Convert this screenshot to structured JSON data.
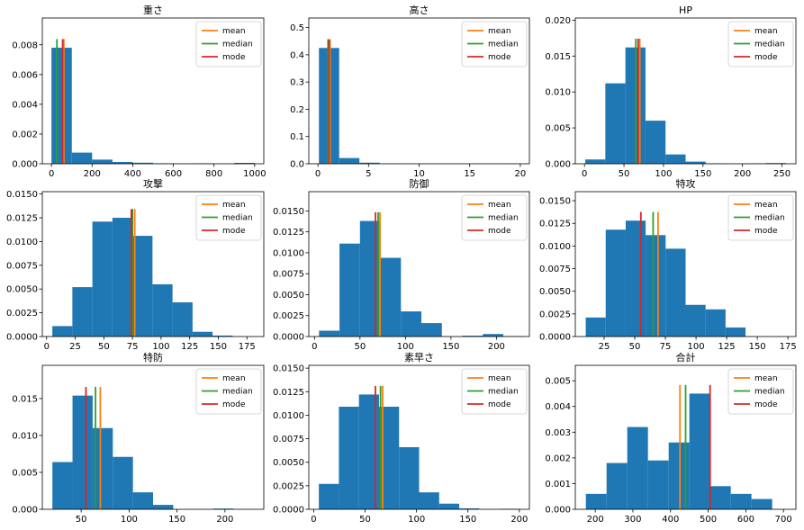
{
  "figure": {
    "background": "#ffffff"
  },
  "style": {
    "bar_color": "#1f77b4",
    "mean_color": "#ff7f0e",
    "median_color": "#2ca02c",
    "mode_color": "#d62728"
  },
  "chart_data": [
    {
      "type": "histogram",
      "title": "重さ",
      "xlim": [
        -45,
        1045
      ],
      "ylim": [
        0,
        0.0098
      ],
      "xticks": [
        0,
        200,
        400,
        600,
        800,
        1000
      ],
      "xtick_labels": [
        "0",
        "200",
        "400",
        "600",
        "800",
        "1000"
      ],
      "yticks": [
        0,
        0.002,
        0.004,
        0.006,
        0.008
      ],
      "ytick_labels": [
        "0.000",
        "0.002",
        "0.004",
        "0.006",
        "0.008"
      ],
      "bin_edges": [
        0.1,
        100.1,
        200.1,
        300.1,
        400.1,
        500.1,
        600.1,
        700.1,
        800.1,
        900.1,
        1000
      ],
      "values": [
        0.0078,
        0.00075,
        0.00028,
        0.00012,
        7e-05,
        3e-05,
        1e-05,
        3e-05,
        0.0,
        6e-05
      ],
      "stats": {
        "mean": 61,
        "median": 27,
        "mode": 55
      },
      "legend": [
        "mean",
        "median",
        "mode"
      ]
    },
    {
      "type": "histogram",
      "title": "高さ",
      "xlim": [
        -0.9,
        20.9
      ],
      "ylim": [
        0,
        0.535
      ],
      "xticks": [
        0,
        5,
        10,
        15,
        20
      ],
      "xtick_labels": [
        "0",
        "5",
        "10",
        "15",
        "20"
      ],
      "yticks": [
        0,
        0.1,
        0.2,
        0.3,
        0.4,
        0.5
      ],
      "ytick_labels": [
        "0.0",
        "0.1",
        "0.2",
        "0.3",
        "0.4",
        "0.5"
      ],
      "bin_edges": [
        0.1,
        2.1,
        4.1,
        6.1,
        8.1,
        10.1,
        12.1,
        14.1,
        16.1,
        18.1,
        20
      ],
      "values": [
        0.425,
        0.021,
        0.004,
        0.0005,
        0.0,
        0.0,
        0.0,
        0.0,
        0.0,
        0.0003
      ],
      "stats": {
        "mean": 1.2,
        "median": 1.0,
        "mode": 1.1
      },
      "legend": [
        "mean",
        "median",
        "mode"
      ]
    },
    {
      "type": "histogram",
      "title": "HP",
      "xlim": [
        -11.6,
        267.6
      ],
      "ylim": [
        0,
        0.0203
      ],
      "xticks": [
        0,
        50,
        100,
        150,
        200,
        250
      ],
      "xtick_labels": [
        "0",
        "50",
        "100",
        "150",
        "200",
        "250"
      ],
      "yticks": [
        0,
        0.005,
        0.01,
        0.015,
        0.02
      ],
      "ytick_labels": [
        "0.000",
        "0.005",
        "0.010",
        "0.015",
        "0.020"
      ],
      "bin_edges": [
        1,
        26.4,
        51.8,
        77.2,
        102.6,
        128,
        153.4,
        178.8,
        204.2,
        229.6,
        255
      ],
      "values": [
        0.0006,
        0.0112,
        0.0162,
        0.006,
        0.0013,
        0.0003,
        4e-05,
        0.0,
        4e-05,
        0.0001
      ],
      "stats": {
        "mean": 70,
        "median": 65,
        "mode": 68
      },
      "legend": [
        "mean",
        "median",
        "mode"
      ]
    },
    {
      "type": "histogram",
      "title": "攻撃",
      "xlim": [
        -3.75,
        189.75
      ],
      "ylim": [
        0,
        0.01525
      ],
      "xticks": [
        0,
        25,
        50,
        75,
        100,
        125,
        150,
        175
      ],
      "xtick_labels": [
        "0",
        "25",
        "50",
        "75",
        "100",
        "125",
        "150",
        "175"
      ],
      "yticks": [
        0,
        0.0025,
        0.005,
        0.0075,
        0.01,
        0.0125,
        0.015
      ],
      "ytick_labels": [
        "0.0000",
        "0.0025",
        "0.0050",
        "0.0075",
        "0.0100",
        "0.0125",
        "0.0150"
      ],
      "bin_edges": [
        5,
        22.5,
        40,
        57.5,
        75,
        92.5,
        110,
        127.5,
        145,
        162.5,
        181
      ],
      "values": [
        0.0011,
        0.0052,
        0.0121,
        0.0125,
        0.0106,
        0.0055,
        0.0036,
        0.0005,
        0.0001,
        0.0
      ],
      "stats": {
        "mean": 77,
        "median": 75,
        "mode": 74
      },
      "legend": [
        "mean",
        "median",
        "mode"
      ]
    },
    {
      "type": "histogram",
      "title": "防御",
      "xlim": [
        -6.25,
        236.25
      ],
      "ylim": [
        0,
        0.0173
      ],
      "xticks": [
        0,
        50,
        100,
        150,
        200
      ],
      "xtick_labels": [
        "0",
        "50",
        "100",
        "150",
        "200"
      ],
      "yticks": [
        0,
        0.0025,
        0.005,
        0.0075,
        0.01,
        0.0125,
        0.015
      ],
      "ytick_labels": [
        "0.0000",
        "0.0025",
        "0.0050",
        "0.0075",
        "0.0100",
        "0.0125",
        "0.0150"
      ],
      "bin_edges": [
        5,
        27.5,
        50,
        72.5,
        95,
        117.5,
        140,
        162.5,
        185,
        207.5,
        230
      ],
      "values": [
        0.0007,
        0.0111,
        0.0138,
        0.0094,
        0.003,
        0.0016,
        0.0,
        0.0001,
        0.0003,
        5e-05
      ],
      "stats": {
        "mean": 72,
        "median": 70,
        "mode": 67
      },
      "legend": [
        "mean",
        "median",
        "mode"
      ]
    },
    {
      "type": "histogram",
      "title": "特攻",
      "xlim": [
        1.5,
        181.5
      ],
      "ylim": [
        0,
        0.016
      ],
      "xticks": [
        25,
        50,
        75,
        100,
        125,
        150,
        175
      ],
      "xtick_labels": [
        "25",
        "50",
        "75",
        "100",
        "125",
        "150",
        "175"
      ],
      "yticks": [
        0,
        0.0025,
        0.005,
        0.0075,
        0.01,
        0.0125,
        0.015
      ],
      "ytick_labels": [
        "0.0000",
        "0.0025",
        "0.0050",
        "0.0075",
        "0.0100",
        "0.0125",
        "0.0150"
      ],
      "bin_edges": [
        10,
        26.3,
        42.6,
        58.9,
        75.2,
        91.5,
        107.8,
        124.1,
        140.4,
        156.7,
        173
      ],
      "values": [
        0.0021,
        0.0118,
        0.0128,
        0.0112,
        0.0097,
        0.0035,
        0.003,
        0.001,
        0.0,
        0.0
      ],
      "stats": {
        "mean": 69,
        "median": 65,
        "mode": 55
      },
      "legend": [
        "mean",
        "median",
        "mode"
      ]
    },
    {
      "type": "histogram",
      "title": "特防",
      "xlim": [
        9.5,
        240.5
      ],
      "ylim": [
        0,
        0.0195
      ],
      "xticks": [
        50,
        100,
        150,
        200
      ],
      "xtick_labels": [
        "50",
        "100",
        "150",
        "200"
      ],
      "yticks": [
        0,
        0.005,
        0.01,
        0.015
      ],
      "ytick_labels": [
        "0.000",
        "0.005",
        "0.010",
        "0.015"
      ],
      "bin_edges": [
        20,
        41,
        62,
        83,
        104,
        125,
        146,
        167,
        188,
        209,
        230
      ],
      "values": [
        0.0064,
        0.0154,
        0.011,
        0.0071,
        0.0023,
        0.0006,
        0.0,
        0.0,
        0.0001,
        0.0
      ],
      "stats": {
        "mean": 70,
        "median": 65,
        "mode": 55
      },
      "legend": [
        "mean",
        "median",
        "mode"
      ]
    },
    {
      "type": "histogram",
      "title": "素早さ",
      "xlim": [
        -4.75,
        209.75
      ],
      "ylim": [
        0,
        0.0153
      ],
      "xticks": [
        0,
        50,
        100,
        150,
        200
      ],
      "xtick_labels": [
        "0",
        "50",
        "100",
        "150",
        "200"
      ],
      "yticks": [
        0,
        0.0025,
        0.005,
        0.0075,
        0.01,
        0.0125,
        0.015
      ],
      "ytick_labels": [
        "0.0000",
        "0.0025",
        "0.0050",
        "0.0075",
        "0.0100",
        "0.0125",
        "0.0150"
      ],
      "bin_edges": [
        5,
        24.5,
        44,
        63.5,
        83,
        102.5,
        122,
        141.5,
        161,
        180.5,
        200
      ],
      "values": [
        0.0027,
        0.0109,
        0.0122,
        0.0109,
        0.0066,
        0.0018,
        0.0006,
        0.0001,
        0.0,
        5e-05
      ],
      "stats": {
        "mean": 67,
        "median": 65,
        "mode": 60
      },
      "legend": [
        "mean",
        "median",
        "mode"
      ]
    },
    {
      "type": "histogram",
      "title": "合計",
      "xlim": [
        147,
        733
      ],
      "ylim": [
        0,
        0.0056
      ],
      "xticks": [
        200,
        300,
        400,
        500,
        600,
        700
      ],
      "xtick_labels": [
        "200",
        "300",
        "400",
        "500",
        "600",
        "700"
      ],
      "yticks": [
        0,
        0.001,
        0.002,
        0.003,
        0.004,
        0.005
      ],
      "ytick_labels": [
        "0.000",
        "0.001",
        "0.002",
        "0.003",
        "0.004",
        "0.005"
      ],
      "bin_edges": [
        175,
        230,
        285,
        340,
        395,
        450,
        505,
        560,
        615,
        670,
        720
      ],
      "values": [
        0.0006,
        0.0018,
        0.0032,
        0.0019,
        0.0026,
        0.0045,
        0.0009,
        0.0006,
        0.0004,
        0.0
      ],
      "stats": {
        "mean": 425,
        "median": 440,
        "mode": 505
      },
      "legend": [
        "mean",
        "median",
        "mode"
      ]
    }
  ]
}
